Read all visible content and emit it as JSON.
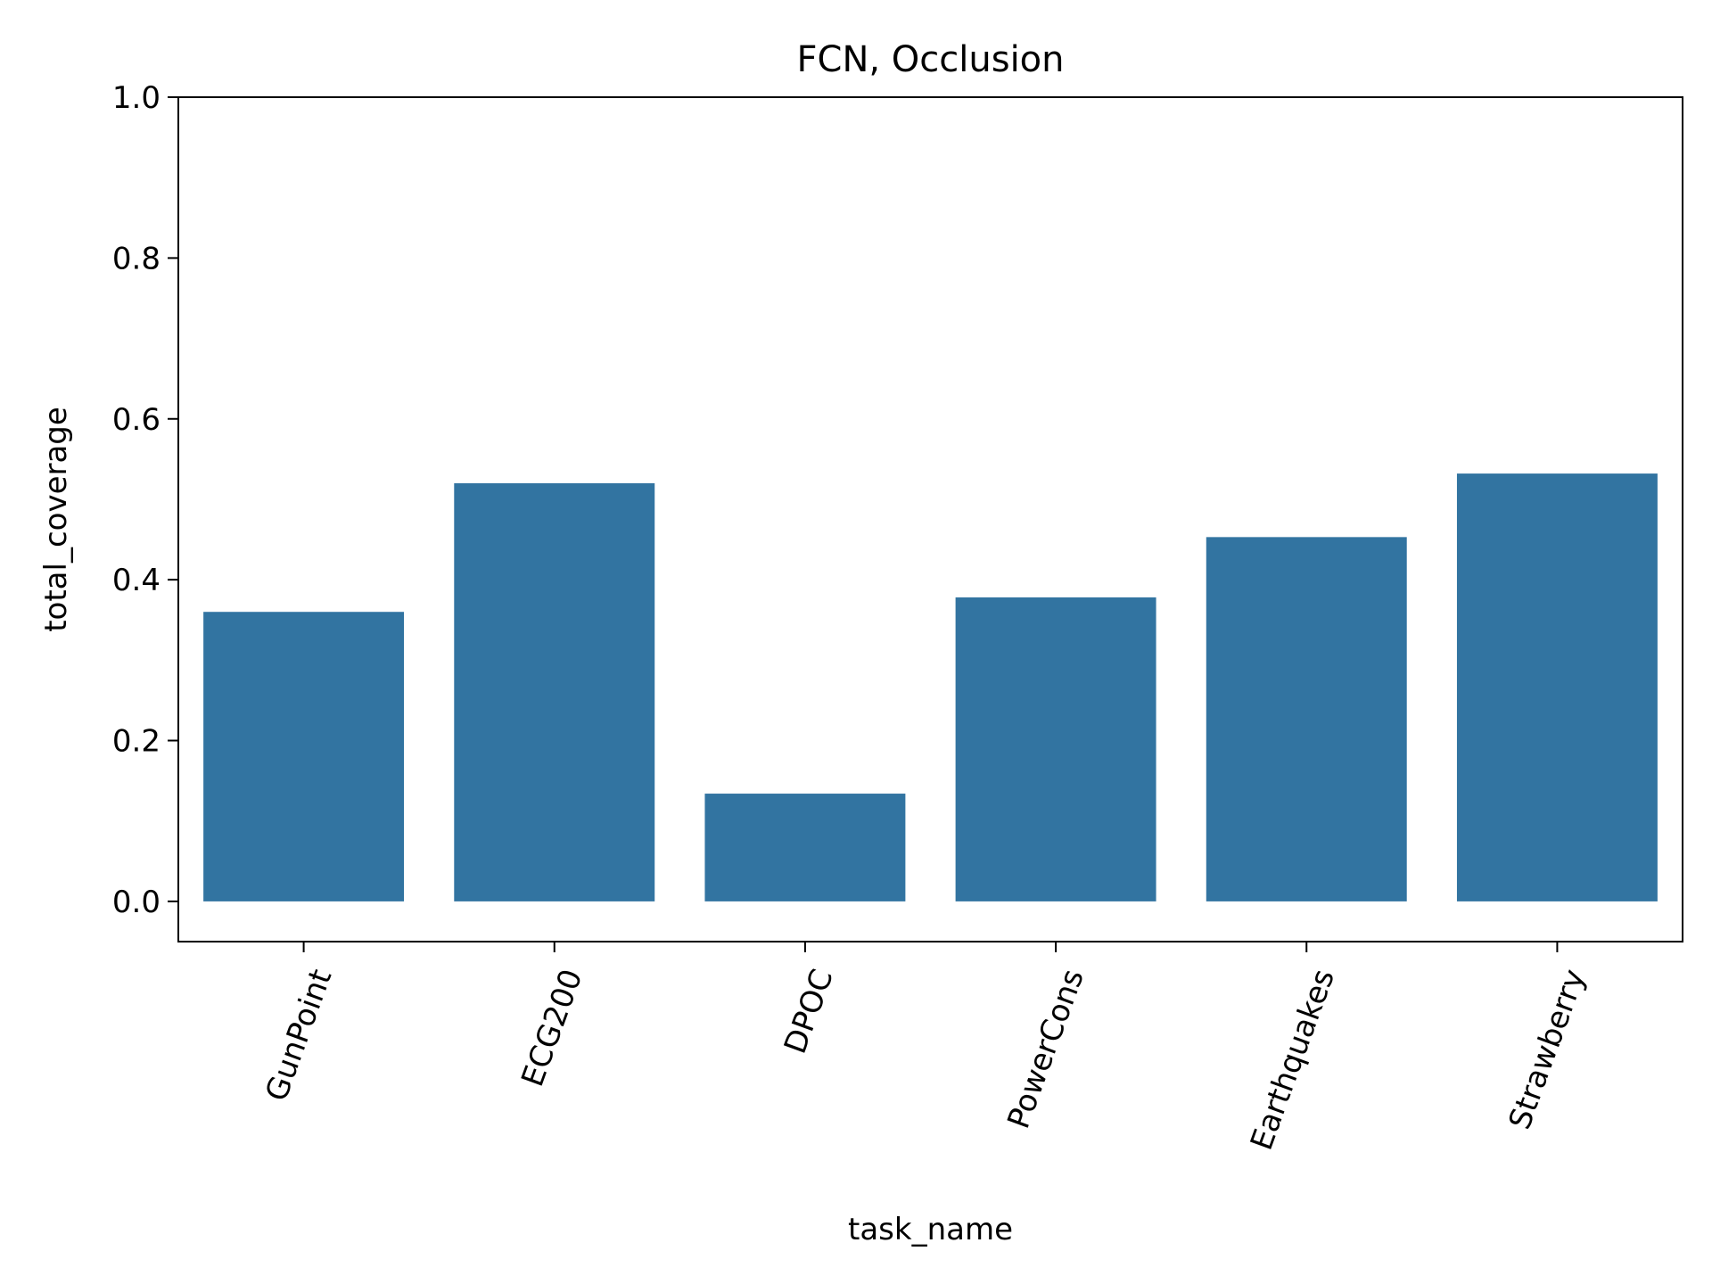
{
  "chart_data": {
    "type": "bar",
    "title": "FCN, Occlusion",
    "xlabel": "task_name",
    "ylabel": "total_coverage",
    "categories": [
      "GunPoint",
      "ECG200",
      "DPOC",
      "PowerCons",
      "Earthquakes",
      "Strawberry"
    ],
    "values": [
      0.36,
      0.52,
      0.134,
      0.378,
      0.453,
      0.532
    ],
    "ylim": [
      -0.05,
      1.0
    ],
    "yticks": [
      0.0,
      0.2,
      0.4,
      0.6,
      0.8,
      1.0
    ],
    "ytick_labels": [
      "0.0",
      "0.2",
      "0.4",
      "0.6",
      "0.8",
      "1.0"
    ],
    "xtick_rotation": "70deg",
    "grid": false,
    "legend": "none",
    "bar_color": "#3274a1"
  }
}
